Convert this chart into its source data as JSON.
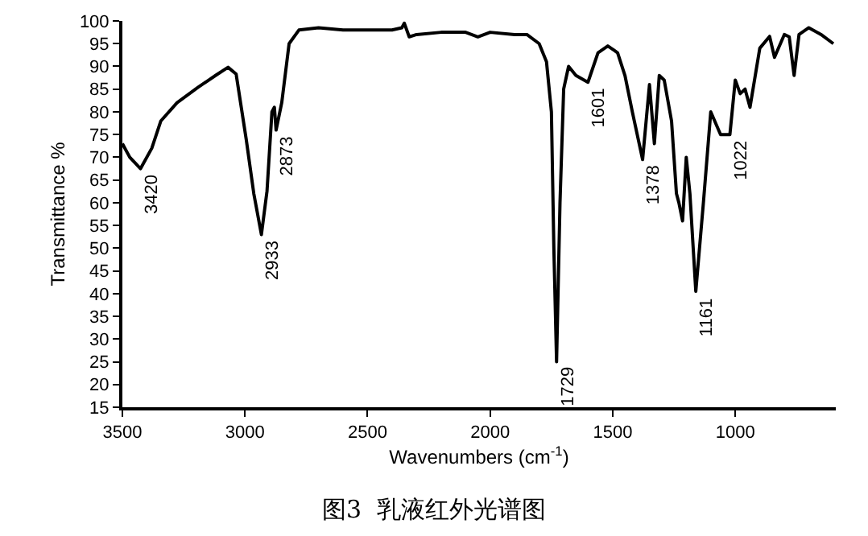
{
  "chart_data": {
    "type": "line",
    "title": "图3  乳液红外光谱图",
    "xlabel": "Wavenumbers (cm$^{-1}$)",
    "ylabel": "Transmittance %",
    "x": [
      3500,
      3470,
      3426,
      3380,
      3343,
      3277,
      3191,
      3120,
      3069,
      3036,
      2995,
      2964,
      2933,
      2910,
      2890,
      2880,
      2873,
      2850,
      2820,
      2780,
      2700,
      2600,
      2500,
      2400,
      2360,
      2350,
      2330,
      2300,
      2200,
      2100,
      2050,
      2000,
      1900,
      1850,
      1800,
      1770,
      1750,
      1740,
      1729,
      1715,
      1700,
      1680,
      1650,
      1601,
      1560,
      1520,
      1480,
      1450,
      1420,
      1378,
      1350,
      1330,
      1310,
      1290,
      1260,
      1240,
      1230,
      1215,
      1200,
      1185,
      1161,
      1130,
      1100,
      1060,
      1022,
      1000,
      980,
      960,
      940,
      900,
      860,
      840,
      800,
      780,
      760,
      740,
      700,
      650,
      600
    ],
    "series": [
      {
        "color": "#000000",
        "values": [
          73,
          70,
          67.5,
          72,
          78,
          82,
          85.4,
          88,
          89.8,
          88.3,
          74,
          62,
          53,
          62.6,
          80,
          81,
          76,
          82,
          95,
          98,
          98.5,
          98,
          98,
          98,
          98.5,
          99.5,
          96.5,
          97,
          97.5,
          97.5,
          96.5,
          97.5,
          97,
          97,
          95,
          91,
          80,
          50,
          25,
          60,
          85,
          90,
          88,
          86.5,
          93,
          94.5,
          93,
          88,
          80,
          69.5,
          86,
          73,
          88,
          87,
          78,
          62,
          60,
          56,
          70,
          62,
          40.5,
          60,
          80,
          75,
          75,
          87,
          84,
          85,
          81,
          94,
          96.6,
          92,
          97,
          96.5,
          88,
          97,
          98.5,
          97,
          95
        ]
      }
    ],
    "xlim": [
      3500,
      590
    ],
    "xticks": [
      3500,
      3000,
      2500,
      2000,
      1500,
      1000
    ],
    "ylim": [
      15,
      100
    ],
    "yticks": [
      15,
      20,
      25,
      30,
      35,
      40,
      45,
      50,
      55,
      60,
      65,
      70,
      75,
      80,
      85,
      90,
      95,
      100
    ],
    "annotations": [
      {
        "text": "3420",
        "x": 3426,
        "y": 67.5
      },
      {
        "text": "2933",
        "x": 2933,
        "y": 53
      },
      {
        "text": "2873",
        "x": 2873,
        "y": 76
      },
      {
        "text": "1729",
        "x": 1729,
        "y": 25
      },
      {
        "text": "1601",
        "x": 1601,
        "y": 86.5
      },
      {
        "text": "1378",
        "x": 1378,
        "y": 69.5
      },
      {
        "text": "1161",
        "x": 1161,
        "y": 40.5
      },
      {
        "text": "1022",
        "x": 1022,
        "y": 75
      }
    ],
    "marker": "none",
    "line_style": "solid"
  }
}
